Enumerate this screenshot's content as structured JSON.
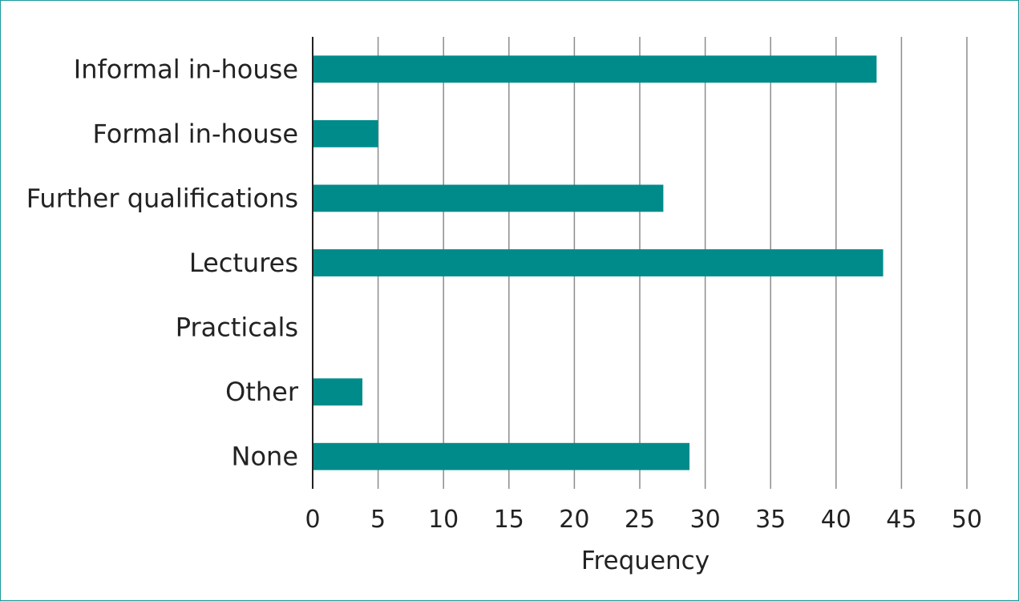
{
  "chart_data": {
    "type": "bar",
    "orientation": "horizontal",
    "categories": [
      "Informal in-house",
      "Formal in-house",
      "Further qualifications",
      "Lectures",
      "Practicals",
      "Other",
      "None"
    ],
    "values": [
      43.1,
      5,
      26.8,
      43.6,
      0,
      3.8,
      28.8
    ],
    "xlabel": "Frequency",
    "ylabel": "",
    "xlim": [
      0,
      50
    ],
    "xticks": [
      0,
      5,
      10,
      15,
      20,
      25,
      30,
      35,
      40,
      45,
      50
    ],
    "grid": true,
    "bar_color": "#008b8b",
    "legend": "none"
  }
}
